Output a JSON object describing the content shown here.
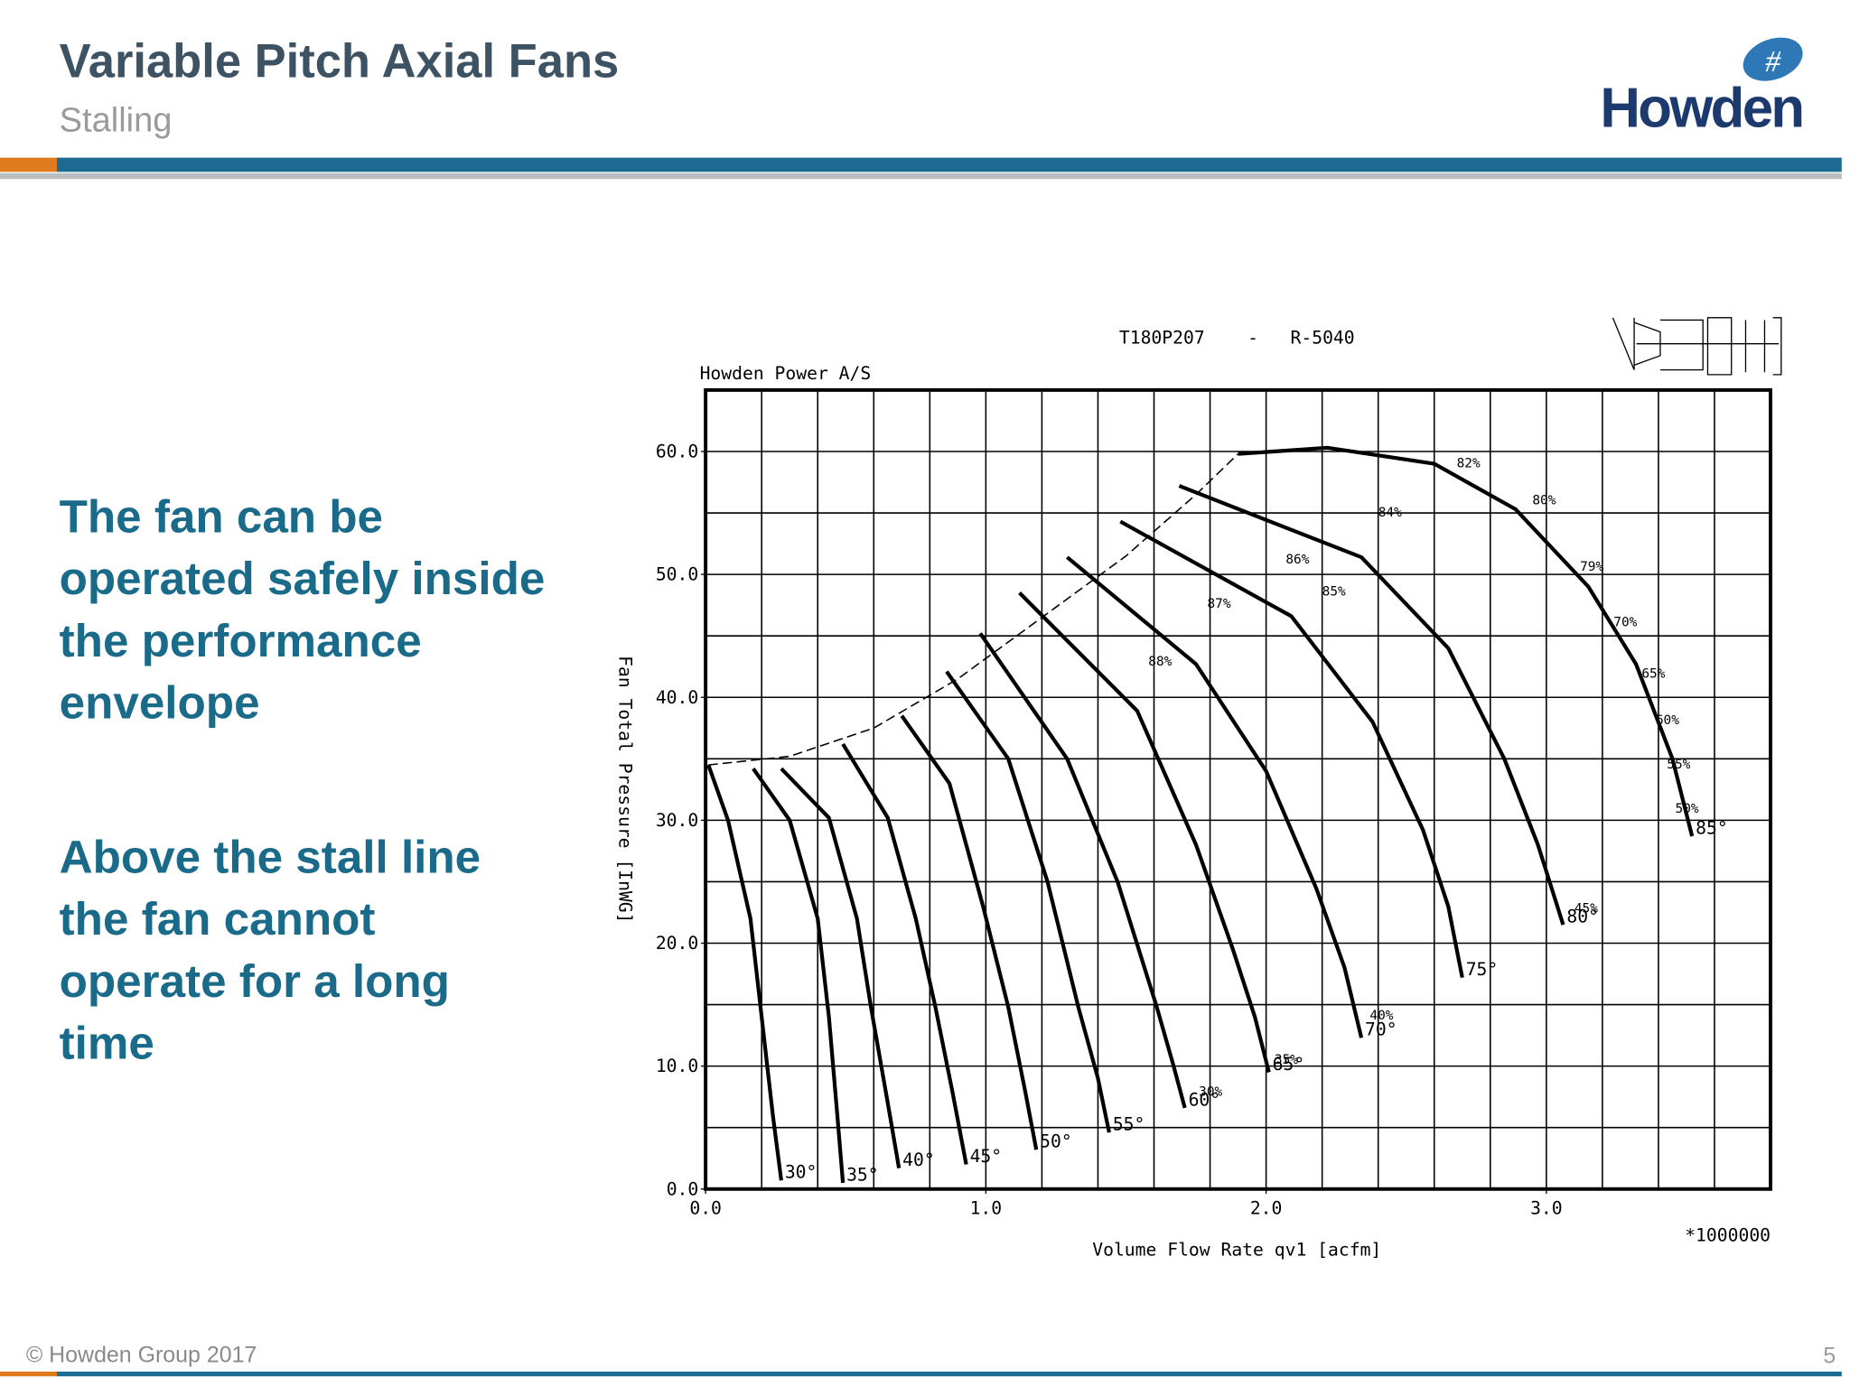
{
  "header": {
    "title": "Variable Pitch Axial Fans",
    "subtitle": "Stalling"
  },
  "logo": {
    "name": "Howden"
  },
  "body": {
    "paragraphs": [
      {
        "lines": [
          "The fan can be",
          "operated safely inside",
          "the performance",
          "envelope"
        ]
      },
      {
        "lines": [
          "Above the stall line",
          "the fan cannot",
          "operate for a long",
          "time"
        ]
      }
    ]
  },
  "footer": {
    "copyright": "© Howden Group 2017",
    "page": "5"
  },
  "chart_data": {
    "type": "line",
    "title": "T180P207    -   R-5040",
    "subtitle": "Howden Power A/S",
    "xlabel": "Volume Flow Rate qv1 [acfm]",
    "ylabel": "Fan Total Pressure [InWG]",
    "x_multiplier": "*1000000",
    "xlim": [
      0,
      3.8
    ],
    "ylim": [
      0,
      65
    ],
    "xticks": [
      {
        "value": 0,
        "label": "0.0"
      },
      {
        "value": 1,
        "label": "1.0"
      },
      {
        "value": 2,
        "label": "2.0"
      },
      {
        "value": 3,
        "label": "3.0"
      }
    ],
    "yticks": [
      {
        "value": 0,
        "label": "0.0"
      },
      {
        "value": 10,
        "label": "10.0"
      },
      {
        "value": 20,
        "label": "20.0"
      },
      {
        "value": 30,
        "label": "30.0"
      },
      {
        "value": 40,
        "label": "40.0"
      },
      {
        "value": 50,
        "label": "50.0"
      },
      {
        "value": 60,
        "label": "60.0"
      }
    ],
    "xgrid": [
      0.2,
      0.4,
      0.6,
      0.8,
      1.0,
      1.2,
      1.4,
      1.6,
      1.8,
      2.0,
      2.2,
      2.4,
      2.6,
      2.8,
      3.0,
      3.2,
      3.4,
      3.6
    ],
    "ygrid": [
      5,
      10,
      15,
      20,
      25,
      30,
      35,
      40,
      45,
      50,
      55,
      60
    ],
    "series": [
      {
        "name": "30°",
        "color": "#000000",
        "x": [
          0.01,
          0.08,
          0.16,
          0.2,
          0.24,
          0.27
        ],
        "values": [
          34.5,
          30,
          22,
          14,
          6,
          0.7
        ]
      },
      {
        "name": "35°",
        "color": "#000000",
        "x": [
          0.17,
          0.3,
          0.4,
          0.44,
          0.47,
          0.49
        ],
        "values": [
          34.2,
          30,
          22,
          14,
          6,
          0.5
        ]
      },
      {
        "name": "40°",
        "color": "#000000",
        "x": [
          0.27,
          0.44,
          0.54,
          0.59,
          0.65,
          0.69
        ],
        "values": [
          34.2,
          30.2,
          22,
          14.8,
          7,
          1.7
        ]
      },
      {
        "name": "45°",
        "color": "#000000",
        "x": [
          0.49,
          0.65,
          0.75,
          0.82,
          0.88,
          0.93
        ],
        "values": [
          36.2,
          30.2,
          22,
          14.8,
          8,
          2
        ]
      },
      {
        "name": "50°",
        "color": "#000000",
        "x": [
          0.7,
          0.87,
          0.99,
          1.08,
          1.14,
          1.18
        ],
        "values": [
          38.5,
          33,
          23,
          14.8,
          8,
          3.2
        ]
      },
      {
        "name": "55°",
        "color": "#000000",
        "x": [
          0.86,
          1.08,
          1.22,
          1.33,
          1.4,
          1.44
        ],
        "values": [
          42.1,
          35,
          25,
          14.8,
          9,
          4.6
        ]
      },
      {
        "name": "60°",
        "color": "#000000",
        "x": [
          0.98,
          1.29,
          1.47,
          1.61,
          1.67,
          1.71
        ],
        "values": [
          45.2,
          35,
          25,
          14.8,
          10,
          6.6
        ]
      },
      {
        "name": "65°",
        "color": "#000000",
        "x": [
          1.12,
          1.54,
          1.75,
          1.88,
          1.96,
          2.01
        ],
        "values": [
          48.5,
          38.9,
          28,
          19.6,
          14,
          9.5
        ]
      },
      {
        "name": "70°",
        "color": "#000000",
        "x": [
          1.29,
          1.75,
          2.0,
          2.18,
          2.28,
          2.34
        ],
        "values": [
          51.4,
          42.7,
          34,
          24.4,
          18,
          12.3
        ]
      },
      {
        "name": "75°",
        "color": "#000000",
        "x": [
          1.48,
          2.09,
          2.38,
          2.56,
          2.65,
          2.7
        ],
        "values": [
          54.3,
          46.6,
          38,
          29.2,
          23,
          17.2
        ]
      },
      {
        "name": "80°",
        "color": "#000000",
        "x": [
          1.69,
          2.34,
          2.65,
          2.85,
          2.97,
          3.06
        ],
        "values": [
          57.2,
          51.4,
          44,
          35,
          28,
          21.5
        ]
      },
      {
        "name": "85°",
        "color": "#000000",
        "x": [
          1.9,
          2.22,
          2.6,
          2.89,
          3.15,
          3.32,
          3.45,
          3.52
        ],
        "values": [
          59.8,
          60.3,
          59,
          55.3,
          49,
          42.7,
          35,
          28.7
        ]
      },
      {
        "color": "#000000",
        "style": "dashed",
        "x": [
          0.01,
          0.3,
          0.6,
          0.9,
          1.2,
          1.5,
          1.75,
          1.9
        ],
        "values": [
          34.5,
          35.2,
          37.5,
          41.5,
          46.5,
          51.5,
          56.5,
          59.8
        ]
      }
    ],
    "annotations": [
      {
        "text": "82%",
        "x": 2.68,
        "y": 58.7
      },
      {
        "text": "80%",
        "x": 2.95,
        "y": 55.7
      },
      {
        "text": "79%",
        "x": 3.12,
        "y": 50.3
      },
      {
        "text": "70%",
        "x": 3.24,
        "y": 45.8
      },
      {
        "text": "65%",
        "x": 3.34,
        "y": 41.6
      },
      {
        "text": "60%",
        "x": 3.39,
        "y": 37.8
      },
      {
        "text": "55%",
        "x": 3.43,
        "y": 34.2
      },
      {
        "text": "50%",
        "x": 3.46,
        "y": 30.6
      },
      {
        "text": "45%",
        "x": 3.1,
        "y": 22.5
      },
      {
        "text": "40%",
        "x": 2.37,
        "y": 13.8
      },
      {
        "text": "35%",
        "x": 2.03,
        "y": 10.2
      },
      {
        "text": "30%",
        "x": 1.76,
        "y": 7.6
      },
      {
        "text": "84%",
        "x": 2.4,
        "y": 54.7
      },
      {
        "text": "86%",
        "x": 2.07,
        "y": 50.9
      },
      {
        "text": "85%",
        "x": 2.2,
        "y": 48.3
      },
      {
        "text": "87%",
        "x": 1.79,
        "y": 47.3
      },
      {
        "text": "88%",
        "x": 1.58,
        "y": 42.6
      }
    ]
  }
}
